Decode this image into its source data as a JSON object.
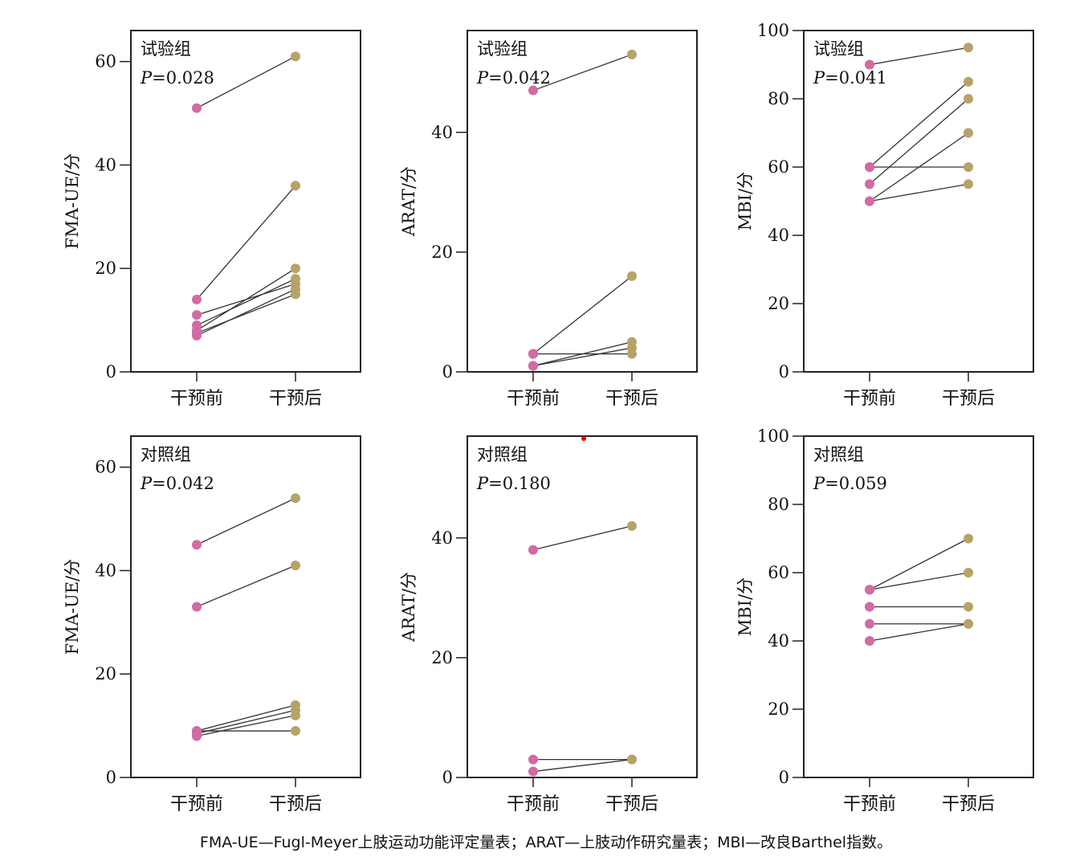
{
  "caption": "FMA-UE—Fugl-Meyer上肢运动功能评定量表；ARAT—上肢动作研究量表；MBI—改良Barthel指数。",
  "colors": {
    "pre": "#d26aa3",
    "post": "#b5a368",
    "line": "#333333",
    "axis": "#222222"
  },
  "chart_data": [
    {
      "type": "line",
      "group": "试验组",
      "p_prefix": "P",
      "p_value": "=0.028",
      "ylabel": "FMA-UE/分",
      "categories": [
        "干预前",
        "干预后"
      ],
      "ylim": [
        0,
        66
      ],
      "yticks": [
        0,
        20,
        40,
        60
      ],
      "pairs": [
        [
          51,
          61
        ],
        [
          14,
          36
        ],
        [
          11,
          17
        ],
        [
          9,
          18
        ],
        [
          8,
          20
        ],
        [
          7,
          16
        ],
        [
          7.5,
          15
        ]
      ]
    },
    {
      "type": "line",
      "group": "试验组",
      "p_prefix": "P",
      "p_value": "=0.042",
      "ylabel": "ARAT/分",
      "categories": [
        "干预前",
        "干预后"
      ],
      "ylim": [
        0,
        57
      ],
      "yticks": [
        0,
        20,
        40
      ],
      "pairs": [
        [
          47,
          53
        ],
        [
          3,
          16
        ],
        [
          3,
          3
        ],
        [
          1,
          5
        ],
        [
          1,
          4
        ]
      ]
    },
    {
      "type": "line",
      "group": "试验组",
      "p_prefix": "P",
      "p_value": "=0.041",
      "ylabel": "MBI/分",
      "categories": [
        "干预前",
        "干预后"
      ],
      "ylim": [
        0,
        100
      ],
      "yticks": [
        0,
        20,
        40,
        60,
        80,
        100
      ],
      "pairs": [
        [
          90,
          95
        ],
        [
          60,
          85
        ],
        [
          60,
          60
        ],
        [
          55,
          80
        ],
        [
          50,
          70
        ],
        [
          50,
          55
        ]
      ]
    },
    {
      "type": "line",
      "group": "对照组",
      "p_prefix": "P",
      "p_value": "=0.042",
      "ylabel": "FMA-UE/分",
      "categories": [
        "干预前",
        "干预后"
      ],
      "ylim": [
        0,
        66
      ],
      "yticks": [
        0,
        20,
        40,
        60
      ],
      "pairs": [
        [
          45,
          54
        ],
        [
          33,
          41
        ],
        [
          9,
          14
        ],
        [
          9,
          9
        ],
        [
          8.5,
          13
        ],
        [
          8,
          12
        ]
      ]
    },
    {
      "type": "line",
      "group": "对照组",
      "p_prefix": "P",
      "p_value": "=0.180",
      "ylabel": "ARAT/分",
      "categories": [
        "干预前",
        "干预后"
      ],
      "ylim": [
        0,
        57
      ],
      "yticks": [
        0,
        20,
        40
      ],
      "pairs": [
        [
          38,
          42
        ],
        [
          3,
          3
        ],
        [
          1,
          3
        ]
      ]
    },
    {
      "type": "line",
      "group": "对照组",
      "p_prefix": "P",
      "p_value": "=0.059",
      "ylabel": "MBI/分",
      "categories": [
        "干预前",
        "干预后"
      ],
      "ylim": [
        0,
        100
      ],
      "yticks": [
        0,
        20,
        40,
        60,
        80,
        100
      ],
      "pairs": [
        [
          55,
          70
        ],
        [
          55,
          60
        ],
        [
          50,
          50
        ],
        [
          45,
          45
        ],
        [
          40,
          45
        ]
      ]
    }
  ]
}
